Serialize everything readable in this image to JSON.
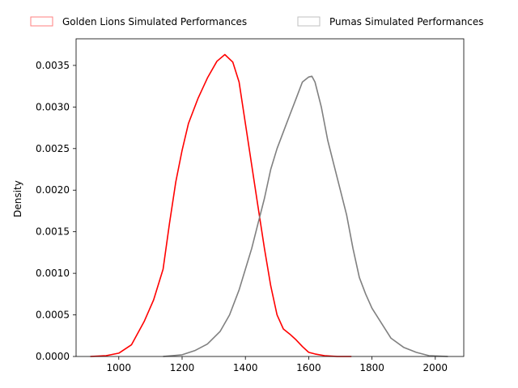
{
  "chart_data": {
    "type": "line",
    "title": "",
    "xlabel": "",
    "ylabel": "Density",
    "xlim": [
      865,
      2090
    ],
    "ylim": [
      0,
      0.00382
    ],
    "x_ticks": [
      1000,
      1200,
      1400,
      1600,
      1800,
      2000
    ],
    "x_tick_labels": [
      "1000",
      "1200",
      "1400",
      "1600",
      "1800",
      "2000"
    ],
    "y_ticks": [
      0,
      0.0005,
      0.001,
      0.0015,
      0.002,
      0.0025,
      0.003,
      0.0035
    ],
    "y_tick_labels": [
      "0.0000",
      "0.0005",
      "0.0010",
      "0.0015",
      "0.0020",
      "0.0025",
      "0.0030",
      "0.0035"
    ],
    "grid": false,
    "legend_position": "top",
    "series": [
      {
        "name": "Golden Lions Simulated Performances",
        "color": "#ff0000",
        "x": [
          910,
          960,
          1000,
          1040,
          1080,
          1110,
          1140,
          1160,
          1180,
          1200,
          1220,
          1250,
          1280,
          1310,
          1335,
          1360,
          1380,
          1400,
          1420,
          1440,
          1460,
          1480,
          1500,
          1520,
          1540,
          1560,
          1580,
          1600,
          1620,
          1650,
          1690,
          1735
        ],
        "y": [
          0.0,
          1e-05,
          4e-05,
          0.00014,
          0.00042,
          0.00068,
          0.00105,
          0.0016,
          0.0021,
          0.00248,
          0.0028,
          0.0031,
          0.00335,
          0.00355,
          0.00363,
          0.00354,
          0.0033,
          0.0028,
          0.0023,
          0.0018,
          0.0013,
          0.00085,
          0.0005,
          0.00033,
          0.00027,
          0.0002,
          0.00012,
          5e-05,
          3e-05,
          1e-05,
          0.0,
          0.0
        ]
      },
      {
        "name": "Pumas Simulated Performances",
        "color": "#808080",
        "x": [
          1140,
          1200,
          1240,
          1280,
          1320,
          1350,
          1380,
          1400,
          1420,
          1440,
          1460,
          1480,
          1500,
          1520,
          1540,
          1560,
          1580,
          1600,
          1610,
          1620,
          1640,
          1660,
          1680,
          1700,
          1720,
          1740,
          1760,
          1780,
          1800,
          1830,
          1860,
          1900,
          1940,
          1980,
          2040
        ],
        "y": [
          0.0,
          2e-05,
          7e-05,
          0.00015,
          0.0003,
          0.0005,
          0.0008,
          0.00105,
          0.0013,
          0.0016,
          0.0019,
          0.00225,
          0.0025,
          0.0027,
          0.0029,
          0.0031,
          0.0033,
          0.00336,
          0.00337,
          0.0033,
          0.003,
          0.0026,
          0.0023,
          0.002,
          0.0017,
          0.0013,
          0.00095,
          0.00075,
          0.00058,
          0.0004,
          0.00022,
          0.00011,
          5e-05,
          1e-05,
          0.0
        ]
      }
    ]
  }
}
